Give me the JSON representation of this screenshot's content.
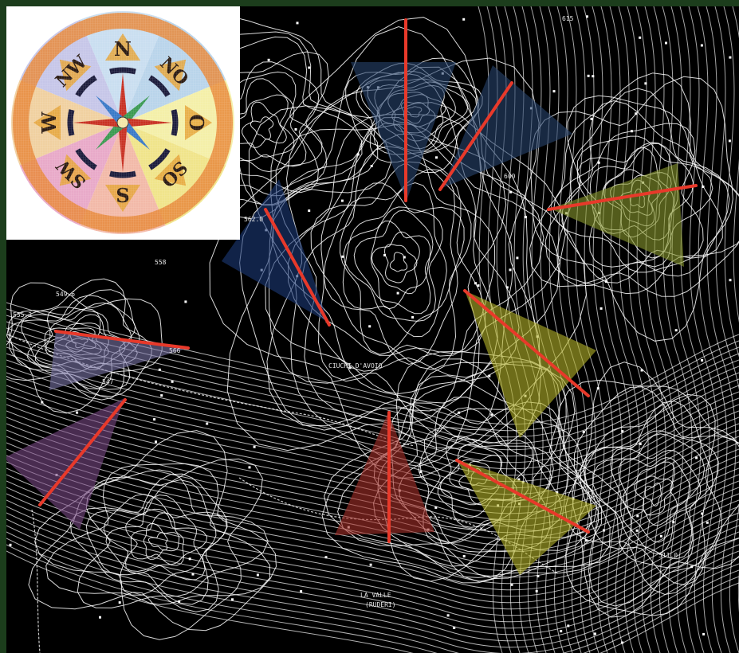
{
  "map": {
    "labels": [
      {
        "id": "place-1",
        "text": "CIUCHI D'AVOIO"
      },
      {
        "id": "place-2",
        "text": "LA VALLE"
      },
      {
        "id": "place-3",
        "text": "(RUDERI)"
      },
      {
        "id": "height-1",
        "text": "562.0"
      },
      {
        "id": "height-2",
        "text": "549.6"
      },
      {
        "id": "height-3",
        "text": "558"
      },
      {
        "id": "height-4",
        "text": "566"
      },
      {
        "id": "height-5",
        "text": "547"
      },
      {
        "id": "height-6",
        "text": "600"
      },
      {
        "id": "height-7",
        "text": "615"
      },
      {
        "id": "height-8",
        "text": "511.0"
      },
      {
        "id": "height-9",
        "text": "555.3"
      }
    ],
    "colors": {
      "background": "#000000",
      "contour": "#ffffff",
      "direction_line": "#e8392a",
      "wedge_blue": "#28456e",
      "wedge_navy": "#1d3a78",
      "wedge_yellow": "#b5b42a",
      "wedge_green": "#8a9a2e",
      "wedge_red": "#a6302a",
      "wedge_purple": "#7a4a86",
      "wedge_lavender": "#7b77a8"
    }
  },
  "compass": {
    "directions": [
      "N",
      "NO",
      "O",
      "SO",
      "S",
      "SW",
      "W",
      "NW"
    ],
    "colors": {
      "ring": "#e88a3c",
      "ring_dark": "#1c1c3c",
      "needle_red": "#c83224",
      "needle_green": "#3a9a52",
      "needle_blue": "#3a7ac8"
    }
  }
}
